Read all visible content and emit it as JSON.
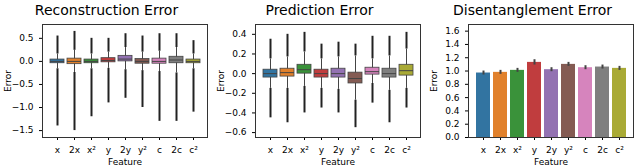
{
  "chart_data": [
    {
      "type": "box",
      "title": "Reconstruction Error",
      "x_label": "Feature",
      "y_label": "Error",
      "categories": [
        "x",
        "2x",
        "x²",
        "y",
        "2y",
        "y²",
        "c",
        "2c",
        "c²"
      ],
      "colors": [
        "#3274a1",
        "#e1812c",
        "#3a923a",
        "#c03d3e",
        "#9372b2",
        "#845b53",
        "#d684bd",
        "#7f7f7f",
        "#a9aa35"
      ],
      "median": [
        0.0,
        0.0,
        0.0,
        0.02,
        0.05,
        0.0,
        0.0,
        0.03,
        0.0
      ],
      "q1": [
        -0.04,
        -0.06,
        -0.04,
        -0.02,
        0.0,
        -0.05,
        -0.05,
        -0.04,
        -0.04
      ],
      "q3": [
        0.04,
        0.06,
        0.04,
        0.07,
        0.12,
        0.05,
        0.06,
        0.1,
        0.04
      ],
      "whisker_low": [
        -0.16,
        -0.24,
        -0.16,
        -0.15,
        -0.18,
        -0.2,
        -0.22,
        -0.25,
        -0.16
      ],
      "whisker_high": [
        0.16,
        0.24,
        0.16,
        0.2,
        0.3,
        0.2,
        0.22,
        0.3,
        0.16
      ],
      "outlier_low": [
        -1.4,
        -1.5,
        -1.2,
        -0.9,
        -0.8,
        -1.0,
        -1.3,
        -1.3,
        -1.1
      ],
      "outlier_high": [
        0.55,
        0.65,
        0.5,
        0.5,
        0.6,
        0.55,
        0.6,
        0.6,
        0.45
      ],
      "ylim": [
        -1.65,
        0.8
      ],
      "yticks": [
        {
          "value": -1.5,
          "label": "−1.5"
        },
        {
          "value": -1.0,
          "label": "−1.0"
        },
        {
          "value": -0.5,
          "label": "−0.5"
        },
        {
          "value": 0.0,
          "label": "0.0"
        },
        {
          "value": 0.5,
          "label": "0.5"
        }
      ]
    },
    {
      "type": "box",
      "title": "Prediction Error",
      "x_label": "Feature",
      "y_label": "Error",
      "categories": [
        "x",
        "2x",
        "x²",
        "y",
        "2y",
        "y²",
        "c",
        "2c",
        "c²"
      ],
      "colors": [
        "#3274a1",
        "#e1812c",
        "#3a923a",
        "#c03d3e",
        "#9372b2",
        "#845b53",
        "#d684bd",
        "#7f7f7f",
        "#a9aa35"
      ],
      "median": [
        0.0,
        0.01,
        0.04,
        0.0,
        0.0,
        -0.05,
        0.02,
        0.0,
        0.03
      ],
      "q1": [
        -0.04,
        -0.03,
        0.0,
        -0.04,
        -0.04,
        -0.1,
        -0.01,
        -0.04,
        -0.02
      ],
      "q3": [
        0.04,
        0.05,
        0.09,
        0.04,
        0.05,
        0.01,
        0.06,
        0.05,
        0.09
      ],
      "whisker_low": [
        -0.15,
        -0.15,
        -0.13,
        -0.15,
        -0.16,
        -0.27,
        -0.1,
        -0.17,
        -0.15
      ],
      "whisker_high": [
        0.15,
        0.17,
        0.22,
        0.15,
        0.17,
        0.18,
        0.15,
        0.18,
        0.25
      ],
      "outlier_low": [
        -0.45,
        -0.5,
        -0.4,
        -0.35,
        -0.4,
        -0.55,
        -0.3,
        -0.5,
        -0.35
      ],
      "outlier_high": [
        0.35,
        0.4,
        0.42,
        0.3,
        0.32,
        0.3,
        0.38,
        0.38,
        0.42
      ],
      "ylim": [
        -0.65,
        0.5
      ],
      "yticks": [
        {
          "value": -0.6,
          "label": "−0.6"
        },
        {
          "value": -0.4,
          "label": "−0.4"
        },
        {
          "value": -0.2,
          "label": "−0.2"
        },
        {
          "value": 0.0,
          "label": "0.0"
        },
        {
          "value": 0.2,
          "label": "0.2"
        },
        {
          "value": 0.4,
          "label": "0.4"
        }
      ]
    },
    {
      "type": "bar",
      "title": "Disentanglement Error",
      "x_label": "Feature",
      "y_label": "Error",
      "categories": [
        "x",
        "2x",
        "x²",
        "y",
        "2y",
        "y²",
        "c",
        "2c",
        "c²"
      ],
      "colors": [
        "#3274a1",
        "#e1812c",
        "#3a923a",
        "#c03d3e",
        "#9372b2",
        "#845b53",
        "#d684bd",
        "#7f7f7f",
        "#a9aa35"
      ],
      "values": [
        0.97,
        0.98,
        1.01,
        1.13,
        1.02,
        1.1,
        1.05,
        1.06,
        1.04
      ],
      "errors": [
        0.03,
        0.03,
        0.03,
        0.04,
        0.03,
        0.03,
        0.03,
        0.03,
        0.03
      ],
      "ylim": [
        0,
        1.7
      ],
      "yticks": [
        {
          "value": 0.0,
          "label": "0.0"
        },
        {
          "value": 0.2,
          "label": "0.2"
        },
        {
          "value": 0.4,
          "label": "0.4"
        },
        {
          "value": 0.6,
          "label": "0.6"
        },
        {
          "value": 0.8,
          "label": "0.8"
        },
        {
          "value": 1.0,
          "label": "1.0"
        },
        {
          "value": 1.2,
          "label": "1.2"
        },
        {
          "value": 1.4,
          "label": "1.4"
        },
        {
          "value": 1.6,
          "label": "1.6"
        }
      ]
    }
  ]
}
